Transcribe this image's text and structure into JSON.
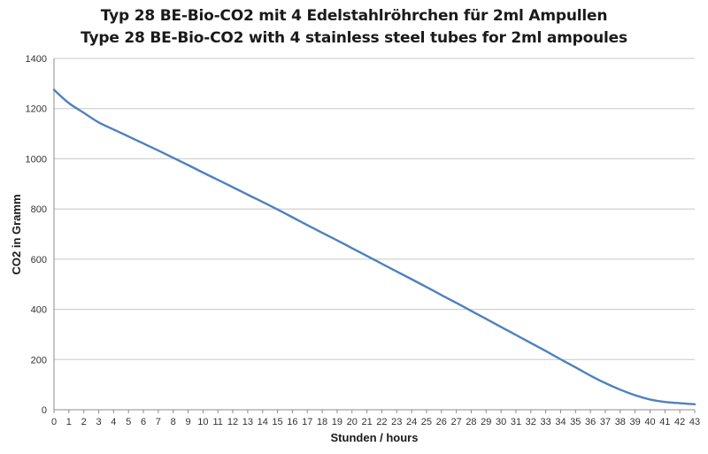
{
  "chart_data": {
    "type": "line",
    "title": "Typ 28 BE-Bio-CO2 mit 4 Edelstahlröhrchen für 2ml Ampullen",
    "subtitle": "Type 28 BE-Bio-CO2 with 4 stainless steel tubes for 2ml ampoules",
    "xlabel": "Stunden / hours",
    "ylabel": "CO2 in Gramm",
    "xlim": [
      0,
      43
    ],
    "ylim": [
      0,
      1400
    ],
    "x_ticks": [
      "0",
      "1",
      "2",
      "3",
      "4",
      "5",
      "6",
      "7",
      "8",
      "9",
      "10",
      "11",
      "12",
      "13",
      "14",
      "15",
      "16",
      "17",
      "18",
      "19",
      "20",
      "21",
      "22",
      "23",
      "24",
      "25",
      "26",
      "27",
      "28",
      "29",
      "30",
      "31",
      "32",
      "33",
      "34",
      "35",
      "36",
      "37",
      "38",
      "39",
      "40",
      "41",
      "42",
      "43"
    ],
    "y_ticks": [
      "0",
      "200",
      "400",
      "600",
      "800",
      "1000",
      "1200",
      "1400"
    ],
    "grid": "horizontal",
    "line_color": "#4f81bd",
    "series": [
      {
        "x": [
          0,
          1,
          2,
          3,
          4,
          5,
          6,
          7,
          8,
          9,
          10,
          11,
          12,
          13,
          14,
          15,
          16,
          17,
          18,
          19,
          20,
          21,
          22,
          23,
          24,
          25,
          26,
          27,
          28,
          29,
          30,
          31,
          32,
          33,
          34,
          35,
          36,
          37,
          38,
          39,
          40,
          41,
          42,
          43
        ],
        "values": [
          1275,
          1222,
          1183,
          1145,
          1117,
          1089,
          1061,
          1033,
          1004,
          975,
          945,
          916,
          887,
          857,
          828,
          798,
          767,
          736,
          705,
          675,
          644,
          613,
          582,
          551,
          520,
          489,
          457,
          426,
          394,
          362,
          330,
          298,
          266,
          234,
          201,
          169,
          136,
          106,
          80,
          58,
          41,
          31,
          26,
          22
        ]
      }
    ]
  }
}
